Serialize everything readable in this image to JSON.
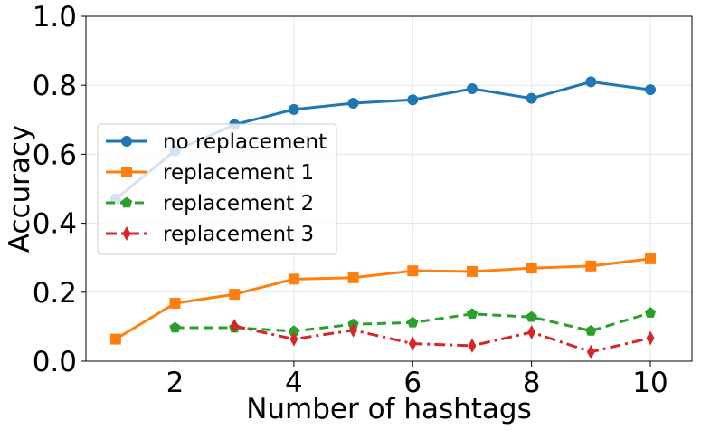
{
  "chart_data": {
    "type": "line",
    "title": "",
    "xlabel": "Number of hashtags",
    "ylabel": "Accuracy",
    "xlim": [
      0.5,
      10.7
    ],
    "ylim": [
      0.0,
      1.0
    ],
    "xticks": [
      2,
      4,
      6,
      8,
      10
    ],
    "yticks": [
      0.0,
      0.2,
      0.4,
      0.6,
      0.8,
      1.0
    ],
    "xtick_labels": [
      "2",
      "4",
      "6",
      "8",
      "10"
    ],
    "ytick_labels": [
      "0.0",
      "0.2",
      "0.4",
      "0.6",
      "0.8",
      "1.0"
    ],
    "grid": true,
    "legend_position": "center-left",
    "series": [
      {
        "name": "no replacement",
        "color": "#1f77b4",
        "linestyle": "solid",
        "marker": "circle",
        "x": [
          1,
          2,
          3,
          4,
          5,
          6,
          7,
          8,
          9,
          10
        ],
        "values": [
          0.47,
          0.61,
          0.686,
          0.73,
          0.748,
          0.758,
          0.79,
          0.762,
          0.81,
          0.787
        ]
      },
      {
        "name": "replacement 1",
        "color": "#ff7f0e",
        "linestyle": "solid",
        "marker": "square",
        "x": [
          1,
          2,
          3,
          4,
          5,
          6,
          7,
          8,
          9,
          10
        ],
        "values": [
          0.064,
          0.168,
          0.194,
          0.238,
          0.242,
          0.262,
          0.26,
          0.27,
          0.276,
          0.297
        ]
      },
      {
        "name": "replacement 2",
        "color": "#2ca02c",
        "linestyle": "dashed",
        "marker": "pentagon",
        "x": [
          2,
          3,
          4,
          5,
          6,
          7,
          8,
          9,
          10
        ],
        "values": [
          0.097,
          0.097,
          0.087,
          0.107,
          0.112,
          0.137,
          0.128,
          0.088,
          0.14
        ]
      },
      {
        "name": "replacement 3",
        "color": "#d62728",
        "linestyle": "dashdot",
        "marker": "thin_diamond",
        "x": [
          3,
          4,
          5,
          6,
          7,
          8,
          9,
          10
        ],
        "values": [
          0.102,
          0.064,
          0.09,
          0.051,
          0.045,
          0.084,
          0.027,
          0.067
        ]
      }
    ]
  }
}
